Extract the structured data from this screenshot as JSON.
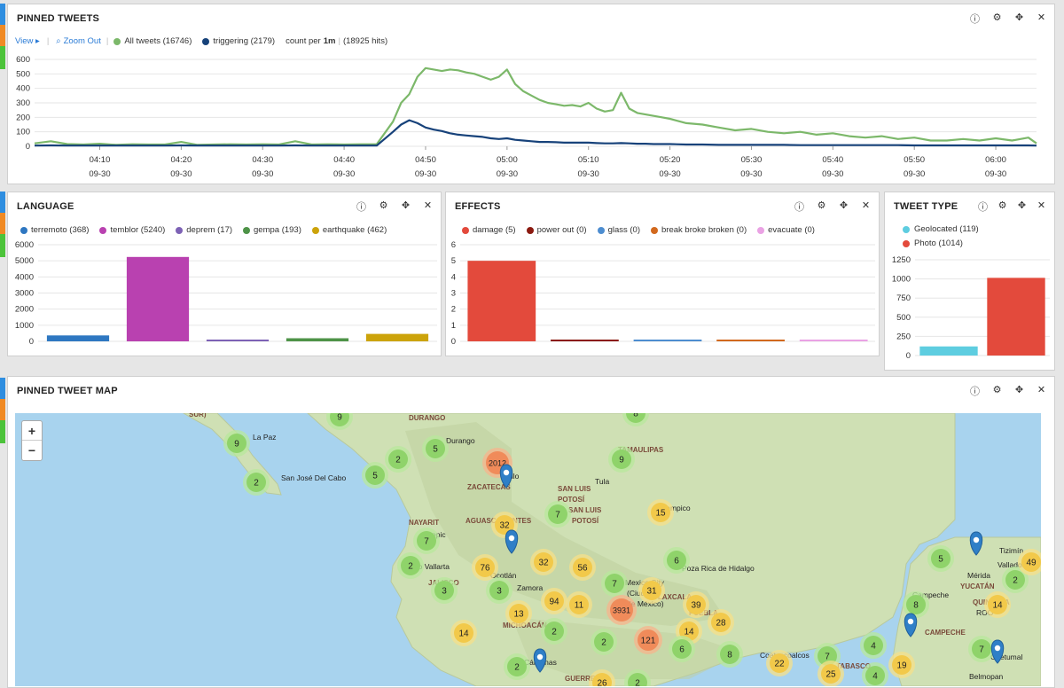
{
  "pinned_tweets": {
    "title": "PINNED TWEETS",
    "view_label": "View ▸",
    "zoom_out_label": "Zoom Out",
    "legend": [
      {
        "label": "All tweets (16746)",
        "color": "#7cb86a"
      },
      {
        "label": "triggering (2179)",
        "color": "#17427a"
      }
    ],
    "count_prefix": "count per",
    "count_interval": "1m",
    "hits_label": "(18925 hits)"
  },
  "language": {
    "title": "LANGUAGE",
    "legend": [
      {
        "label": "terremoto (368)",
        "color": "#2e77c1"
      },
      {
        "label": "temblor (5240)",
        "color": "#b941b0"
      },
      {
        "label": "deprem (17)",
        "color": "#7d62b5"
      },
      {
        "label": "gempa (193)",
        "color": "#4e9348"
      },
      {
        "label": "earthquake (462)",
        "color": "#cca30a"
      }
    ]
  },
  "effects": {
    "title": "EFFECTS",
    "legend": [
      {
        "label": "damage (5)",
        "color": "#e34a3c"
      },
      {
        "label": "power out (0)",
        "color": "#8b1a10"
      },
      {
        "label": "glass (0)",
        "color": "#4d8dd0"
      },
      {
        "label": "break broke broken (0)",
        "color": "#d2691e"
      },
      {
        "label": "evacuate (0)",
        "color": "#eaa2e4"
      }
    ]
  },
  "tweet_type": {
    "title": "TWEET TYPE",
    "legend": [
      {
        "label": "Geolocated (119)",
        "color": "#5ecde0"
      },
      {
        "label": "Photo (1014)",
        "color": "#e34a3c"
      }
    ]
  },
  "map": {
    "title": "PINNED TWEET MAP",
    "zoom_in": "+",
    "zoom_out": "−",
    "labels": [
      "SUR)",
      "La Paz",
      "San José Del Cabo",
      "DURANGO",
      "Durango",
      "ZACATECAS",
      "illo",
      "TAMAULIPAS",
      "SAN LUIS",
      "POTOSÍ",
      "SAN LUIS",
      "POTOSÍ",
      "Tampico",
      "NAYARIT",
      "epic",
      "AGUASCALIENTES",
      "uerto Vallarta",
      "Ocotlán",
      "JALISCO",
      "Zamora",
      "MICHOACÁN",
      "Cárdenas",
      "GUERRERO",
      "Poza Rica de Hidalgo",
      "Mexico City",
      "(Ciudad",
      "de México)",
      "TLAXCALA",
      "PUEBLA",
      "Coatzacoalcos",
      "TABASCO",
      "Campeche",
      "CAMPECHE",
      "Mérida",
      "YUCATÁN",
      "Valladolid",
      "Tizimín",
      "QUINTANA",
      "ROO",
      "Chetumal",
      "Belmopan",
      "Tula"
    ],
    "clusters": [
      "9",
      "8",
      "9",
      "2",
      "5",
      "2",
      "5",
      "2012",
      "9",
      "7",
      "15",
      "32",
      "7",
      "2",
      "76",
      "32",
      "56",
      "6",
      "7",
      "31",
      "3",
      "3",
      "94",
      "11",
      "3931",
      "39",
      "13",
      "2",
      "14",
      "28",
      "14",
      "121",
      "2",
      "6",
      "8",
      "2",
      "26",
      "2",
      "22",
      "7",
      "25",
      "4",
      "4",
      "19",
      "8",
      "5",
      "2",
      "49",
      "14",
      "7"
    ]
  },
  "chart_data": [
    {
      "type": "line",
      "title": "",
      "x": [
        "04:02",
        "04:04",
        "04:06",
        "04:08",
        "04:10",
        "04:12",
        "04:14",
        "04:16",
        "04:18",
        "04:20",
        "04:22",
        "04:24",
        "04:26",
        "04:28",
        "04:30",
        "04:32",
        "04:34",
        "04:36",
        "04:38",
        "04:40",
        "04:42",
        "04:44",
        "04:46",
        "04:47",
        "04:48",
        "04:49",
        "04:50",
        "04:51",
        "04:52",
        "04:53",
        "04:54",
        "04:55",
        "04:56",
        "04:57",
        "04:58",
        "04:59",
        "05:00",
        "05:01",
        "05:02",
        "05:03",
        "05:04",
        "05:05",
        "05:06",
        "05:07",
        "05:08",
        "05:09",
        "05:10",
        "05:11",
        "05:12",
        "05:13",
        "05:14",
        "05:15",
        "05:16",
        "05:17",
        "05:18",
        "05:19",
        "05:20",
        "05:22",
        "05:24",
        "05:26",
        "05:28",
        "05:30",
        "05:32",
        "05:34",
        "05:36",
        "05:38",
        "05:40",
        "05:42",
        "05:44",
        "05:46",
        "05:48",
        "05:50",
        "05:52",
        "05:54",
        "05:56",
        "05:58",
        "06:00",
        "06:02",
        "06:04",
        "06:05"
      ],
      "x_ticks": [
        "04:10\n09-30",
        "04:20\n09-30",
        "04:30\n09-30",
        "04:40\n09-30",
        "04:50\n09-30",
        "05:00\n09-30",
        "05:10\n09-30",
        "05:20\n09-30",
        "05:30\n09-30",
        "05:40\n09-30",
        "05:50\n09-30",
        "06:00\n09-30"
      ],
      "ylim": [
        0,
        600
      ],
      "y_ticks": [
        0,
        100,
        200,
        300,
        400,
        500,
        600
      ],
      "grid": true,
      "series": [
        {
          "name": "All tweets (16746)",
          "values": [
            20,
            35,
            15,
            12,
            18,
            10,
            14,
            12,
            12,
            30,
            10,
            12,
            14,
            12,
            14,
            12,
            35,
            12,
            14,
            12,
            14,
            14,
            170,
            300,
            360,
            480,
            540,
            530,
            520,
            530,
            525,
            510,
            500,
            480,
            460,
            480,
            530,
            430,
            380,
            350,
            320,
            300,
            290,
            280,
            285,
            275,
            300,
            260,
            240,
            250,
            370,
            260,
            230,
            220,
            210,
            200,
            190,
            160,
            150,
            130,
            110,
            120,
            100,
            90,
            100,
            80,
            90,
            70,
            60,
            70,
            50,
            60,
            40,
            40,
            50,
            40,
            55,
            40,
            60,
            20
          ]
        },
        {
          "name": "triggering (2179)",
          "values": [
            5,
            6,
            5,
            5,
            5,
            5,
            5,
            5,
            5,
            6,
            5,
            5,
            5,
            5,
            5,
            5,
            6,
            5,
            5,
            5,
            5,
            5,
            100,
            150,
            180,
            160,
            130,
            115,
            105,
            90,
            80,
            75,
            70,
            65,
            55,
            50,
            55,
            45,
            40,
            35,
            30,
            30,
            28,
            25,
            25,
            25,
            25,
            22,
            20,
            20,
            22,
            20,
            18,
            18,
            15,
            15,
            15,
            12,
            12,
            10,
            10,
            10,
            10,
            10,
            8,
            8,
            8,
            8,
            8,
            8,
            8,
            6,
            6,
            6,
            6,
            6,
            6,
            6,
            6,
            5
          ]
        }
      ]
    },
    {
      "type": "bar",
      "title": "",
      "categories": [
        "terremoto (368)",
        "temblor (5240)",
        "deprem (17)",
        "gempa (193)",
        "earthquake (462)"
      ],
      "values": [
        368,
        5240,
        17,
        193,
        462
      ],
      "ylim": [
        0,
        6000
      ],
      "y_ticks": [
        0,
        1000,
        2000,
        3000,
        4000,
        5000,
        6000
      ],
      "colors": [
        "#2e77c1",
        "#b941b0",
        "#7d62b5",
        "#4e9348",
        "#cca30a"
      ]
    },
    {
      "type": "bar",
      "title": "",
      "categories": [
        "damage (5)",
        "power out (0)",
        "glass (0)",
        "break broke broken (0)",
        "evacuate (0)"
      ],
      "values": [
        5,
        0,
        0,
        0,
        0
      ],
      "ylim": [
        0,
        6
      ],
      "y_ticks": [
        0,
        1,
        2,
        3,
        4,
        5,
        6
      ],
      "colors": [
        "#e34a3c",
        "#8b1a10",
        "#4d8dd0",
        "#d2691e",
        "#eaa2e4"
      ]
    },
    {
      "type": "bar",
      "title": "",
      "categories": [
        "Geolocated (119)",
        "Photo (1014)"
      ],
      "values": [
        119,
        1014
      ],
      "ylim": [
        0,
        1250
      ],
      "y_ticks": [
        0,
        250,
        500,
        750,
        1000,
        1250
      ],
      "colors": [
        "#5ecde0",
        "#e34a3c"
      ]
    }
  ]
}
